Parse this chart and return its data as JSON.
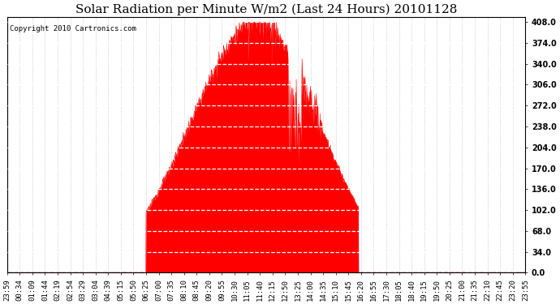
{
  "title": "Solar Radiation per Minute W/m2 (Last 24 Hours) 20101128",
  "copyright_text": "Copyright 2010 Cartronics.com",
  "background_color": "#ffffff",
  "bar_color": "#ff0000",
  "grid_color": "#c0c0c0",
  "yticks": [
    0.0,
    34.0,
    68.0,
    102.0,
    136.0,
    170.0,
    204.0,
    238.0,
    272.0,
    306.0,
    340.0,
    374.0,
    408.0
  ],
  "ymin": 0.0,
  "ymax": 416.0,
  "x_labels": [
    "23:59",
    "00:34",
    "01:09",
    "01:44",
    "02:19",
    "02:54",
    "03:29",
    "03:04",
    "04:39",
    "05:15",
    "05:50",
    "06:25",
    "07:00",
    "07:35",
    "08:10",
    "08:45",
    "09:20",
    "09:55",
    "10:30",
    "11:05",
    "11:40",
    "12:15",
    "12:50",
    "13:25",
    "14:00",
    "14:35",
    "15:10",
    "15:45",
    "16:20",
    "16:55",
    "17:30",
    "18:05",
    "18:40",
    "19:15",
    "19:50",
    "20:25",
    "21:00",
    "21:35",
    "22:10",
    "22:45",
    "23:20",
    "23:55"
  ],
  "title_fontsize": 11,
  "copyright_fontsize": 6.5,
  "tick_fontsize": 6.5,
  "ytick_fontsize": 7,
  "rise_hour": 6.42,
  "set_hour": 16.25,
  "peak_hour": 11.55,
  "peak_value": 408.0,
  "n_points": 1440
}
